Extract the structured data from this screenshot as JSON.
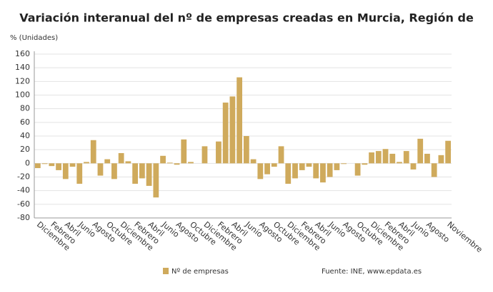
{
  "chart_data": {
    "type": "bar",
    "title": "Variación interanual del nº de empresas creadas en Murcia, Región de",
    "y_label": "% (Unidades)",
    "source": "Fuente: INE, www.epdata.es",
    "categories": [
      "Diciembre",
      null,
      "Febrero",
      null,
      "Abril",
      null,
      "Junio",
      null,
      "Agosto",
      null,
      "Octubre",
      null,
      "Diciembre",
      null,
      "Febrero",
      null,
      "Abril",
      null,
      "Junio",
      null,
      "Agosto",
      null,
      "Octubre",
      null,
      "Diciembre",
      null,
      "Febrero",
      null,
      "Abril",
      null,
      "Junio",
      null,
      "Agosto",
      null,
      "Octubre",
      null,
      "Diciembre",
      null,
      "Febrero",
      null,
      "Abril",
      null,
      "Junio",
      null,
      "Agosto",
      null,
      "Octubre",
      null,
      "Diciembre",
      null,
      "Febrero",
      null,
      "Abril",
      null,
      "Junio",
      null,
      "Agosto",
      null,
      null,
      "Noviembre"
    ],
    "series": [
      {
        "name": "Nº de empresas",
        "color": "#cfaa5c",
        "values": [
          -7,
          -1,
          -4,
          -10,
          -23,
          -5,
          -30,
          2,
          34,
          -18,
          6,
          -23,
          15,
          3,
          -30,
          -22,
          -33,
          -50,
          11,
          1,
          -2,
          35,
          2,
          0,
          25,
          0,
          32,
          89,
          98,
          126,
          40,
          6,
          -23,
          -16,
          -5,
          25,
          -30,
          -22,
          -10,
          -5,
          -22,
          -28,
          -20,
          -10,
          -1,
          0,
          -18,
          -2,
          16,
          18,
          21,
          14,
          2,
          18,
          -9,
          36,
          14,
          -20,
          12,
          33
        ]
      }
    ],
    "ylim": [
      -80,
      160
    ],
    "yticks": [
      -80,
      -60,
      -40,
      -20,
      0,
      20,
      40,
      60,
      80,
      100,
      120,
      140,
      160
    ],
    "grid": true
  }
}
